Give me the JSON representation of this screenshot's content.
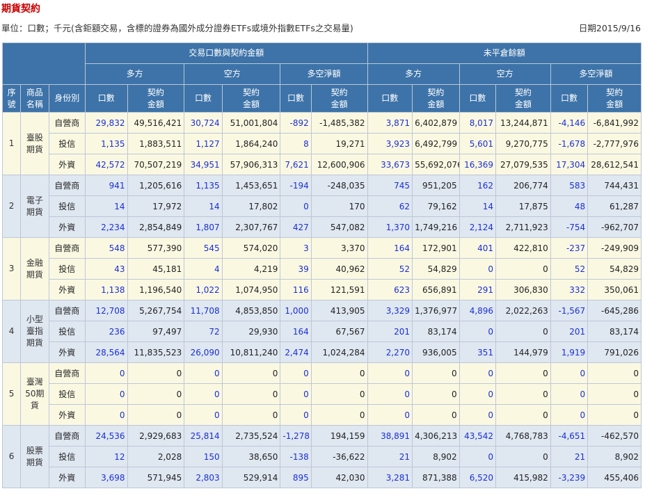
{
  "page": {
    "title": "期貨契約",
    "unit_text": "單位：口數；千元(含鉅額交易，含標的證券為國外成分證券ETFs或境外指數ETFs之交易量)",
    "date_text": "日期2015/9/16"
  },
  "table": {
    "header": {
      "group_trade": "交易口數與契約金額",
      "group_oi": "未平倉餘額",
      "long": "多方",
      "short": "空方",
      "net": "多空淨額",
      "seq": "序號",
      "product": "商品名稱",
      "identity": "身份別",
      "qty": "口數",
      "amount": "契約金額"
    },
    "products": [
      {
        "seq": "1",
        "name": "臺股期貨",
        "rows": [
          {
            "identity": "自營商",
            "v": [
              "29,832",
              "49,516,421",
              "30,724",
              "51,001,804",
              "-892",
              "-1,485,382",
              "3,871",
              "6,402,879",
              "8,017",
              "13,244,871",
              "-4,146",
              "-6,841,992"
            ]
          },
          {
            "identity": "投信",
            "v": [
              "1,135",
              "1,883,511",
              "1,127",
              "1,864,240",
              "8",
              "19,271",
              "3,923",
              "6,492,799",
              "5,601",
              "9,270,775",
              "-1,678",
              "-2,777,976"
            ]
          },
          {
            "identity": "外資",
            "v": [
              "42,572",
              "70,507,219",
              "34,951",
              "57,906,313",
              "7,621",
              "12,600,906",
              "33,673",
              "55,692,076",
              "16,369",
              "27,079,535",
              "17,304",
              "28,612,541"
            ]
          }
        ]
      },
      {
        "seq": "2",
        "name": "電子期貨",
        "rows": [
          {
            "identity": "自營商",
            "v": [
              "941",
              "1,205,616",
              "1,135",
              "1,453,651",
              "-194",
              "-248,035",
              "745",
              "951,205",
              "162",
              "206,774",
              "583",
              "744,431"
            ]
          },
          {
            "identity": "投信",
            "v": [
              "14",
              "17,972",
              "14",
              "17,802",
              "0",
              "170",
              "62",
              "79,162",
              "14",
              "17,875",
              "48",
              "61,287"
            ]
          },
          {
            "identity": "外資",
            "v": [
              "2,234",
              "2,854,849",
              "1,807",
              "2,307,767",
              "427",
              "547,082",
              "1,370",
              "1,749,216",
              "2,124",
              "2,711,923",
              "-754",
              "-962,707"
            ]
          }
        ]
      },
      {
        "seq": "3",
        "name": "金融期貨",
        "rows": [
          {
            "identity": "自營商",
            "v": [
              "548",
              "577,390",
              "545",
              "574,020",
              "3",
              "3,370",
              "164",
              "172,901",
              "401",
              "422,810",
              "-237",
              "-249,909"
            ]
          },
          {
            "identity": "投信",
            "v": [
              "43",
              "45,181",
              "4",
              "4,219",
              "39",
              "40,962",
              "52",
              "54,829",
              "0",
              "0",
              "52",
              "54,829"
            ]
          },
          {
            "identity": "外資",
            "v": [
              "1,138",
              "1,196,540",
              "1,022",
              "1,074,950",
              "116",
              "121,591",
              "623",
              "656,891",
              "291",
              "306,830",
              "332",
              "350,061"
            ]
          }
        ]
      },
      {
        "seq": "4",
        "name": "小型臺指期貨",
        "rows": [
          {
            "identity": "自營商",
            "v": [
              "12,708",
              "5,267,754",
              "11,708",
              "4,853,850",
              "1,000",
              "413,905",
              "3,329",
              "1,376,977",
              "4,896",
              "2,022,263",
              "-1,567",
              "-645,286"
            ]
          },
          {
            "identity": "投信",
            "v": [
              "236",
              "97,497",
              "72",
              "29,930",
              "164",
              "67,567",
              "201",
              "83,174",
              "0",
              "0",
              "201",
              "83,174"
            ]
          },
          {
            "identity": "外資",
            "v": [
              "28,564",
              "11,835,523",
              "26,090",
              "10,811,240",
              "2,474",
              "1,024,284",
              "2,270",
              "936,005",
              "351",
              "144,979",
              "1,919",
              "791,026"
            ]
          }
        ]
      },
      {
        "seq": "5",
        "name": "臺灣50期貨",
        "rows": [
          {
            "identity": "自營商",
            "v": [
              "0",
              "0",
              "0",
              "0",
              "0",
              "0",
              "0",
              "0",
              "0",
              "0",
              "0",
              "0"
            ]
          },
          {
            "identity": "投信",
            "v": [
              "0",
              "0",
              "0",
              "0",
              "0",
              "0",
              "0",
              "0",
              "0",
              "0",
              "0",
              "0"
            ]
          },
          {
            "identity": "外資",
            "v": [
              "0",
              "0",
              "0",
              "0",
              "0",
              "0",
              "0",
              "0",
              "0",
              "0",
              "0",
              "0"
            ]
          }
        ]
      },
      {
        "seq": "6",
        "name": "股票期貨",
        "rows": [
          {
            "identity": "自營商",
            "v": [
              "24,536",
              "2,929,683",
              "25,814",
              "2,735,524",
              "-1,278",
              "194,159",
              "38,891",
              "4,306,213",
              "43,542",
              "4,768,783",
              "-4,651",
              "-462,570"
            ]
          },
          {
            "identity": "投信",
            "v": [
              "12",
              "2,028",
              "150",
              "38,650",
              "-138",
              "-36,622",
              "21",
              "8,902",
              "0",
              "0",
              "21",
              "8,902"
            ]
          },
          {
            "identity": "外資",
            "v": [
              "3,698",
              "571,945",
              "2,803",
              "529,914",
              "895",
              "42,030",
              "3,281",
              "871,388",
              "6,520",
              "415,982",
              "-3,239",
              "455,406"
            ]
          }
        ]
      }
    ]
  },
  "colors": {
    "header_bg": "#3d73a8",
    "row_odd_bg": "#fbf8e2",
    "row_even_bg": "#dfe7f1",
    "qty_text": "#1a2fd6",
    "title_text": "#cc0000"
  }
}
